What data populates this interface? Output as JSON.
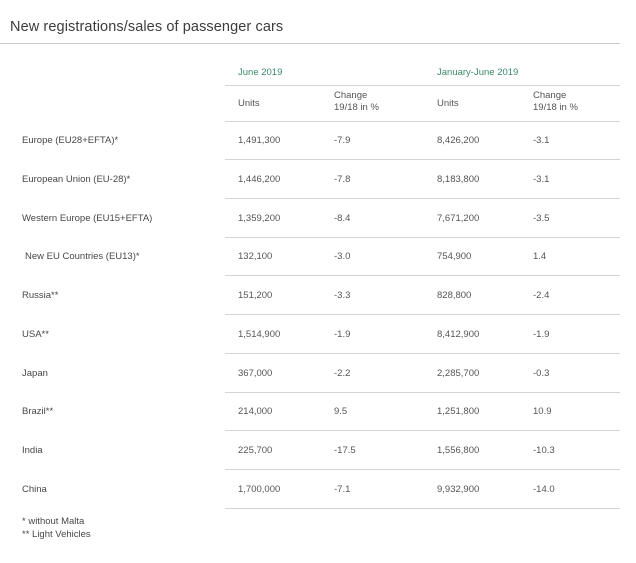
{
  "title": "New registrations/sales of passenger cars",
  "periods": {
    "first": "June 2019",
    "second": "January-June 2019"
  },
  "column_headers": {
    "units": "Units",
    "change_line1": "Change",
    "change_line2": "19/18 in %"
  },
  "rows": [
    {
      "label": "Europe (EU28+EFTA)*",
      "june_units": "1,491,300",
      "june_change": "-7.9",
      "ytd_units": "8,426,200",
      "ytd_change": "-3.1"
    },
    {
      "label": "European Union (EU-28)*",
      "june_units": "1,446,200",
      "june_change": "-7.8",
      "ytd_units": "8,183,800",
      "ytd_change": "-3.1"
    },
    {
      "label": "Western Europe (EU15+EFTA)",
      "june_units": "1,359,200",
      "june_change": "-8.4",
      "ytd_units": "7,671,200",
      "ytd_change": "-3.5"
    },
    {
      "label": "New EU Countries (EU13)*",
      "june_units": "132,100",
      "june_change": "-3.0",
      "ytd_units": "754,900",
      "ytd_change": "1.4"
    },
    {
      "label": "Russia**",
      "june_units": "151,200",
      "june_change": "-3.3",
      "ytd_units": "828,800",
      "ytd_change": "-2.4"
    },
    {
      "label": "USA**",
      "june_units": "1,514,900",
      "june_change": "-1.9",
      "ytd_units": "8,412,900",
      "ytd_change": "-1.9"
    },
    {
      "label": "Japan",
      "june_units": "367,000",
      "june_change": "-2.2",
      "ytd_units": "2,285,700",
      "ytd_change": "-0.3"
    },
    {
      "label": "Brazil**",
      "june_units": "214,000",
      "june_change": "9.5",
      "ytd_units": "1,251,800",
      "ytd_change": "10.9"
    },
    {
      "label": "India",
      "june_units": "225,700",
      "june_change": "-17.5",
      "ytd_units": "1,556,800",
      "ytd_change": "-10.3"
    },
    {
      "label": "China",
      "june_units": "1,700,000",
      "june_change": "-7.1",
      "ytd_units": "9,932,900",
      "ytd_change": "-14.0"
    }
  ],
  "footnotes": {
    "single": "* without Malta",
    "double": "** Light Vehicles"
  }
}
